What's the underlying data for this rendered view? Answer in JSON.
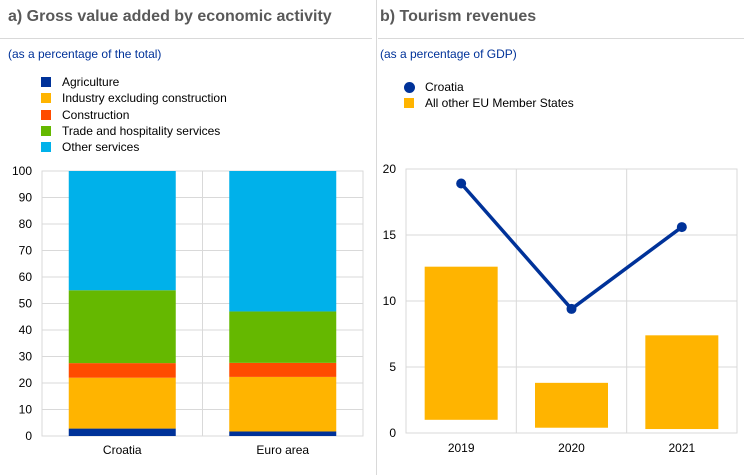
{
  "colors": {
    "agriculture": "#003299",
    "industry": "#FFB400",
    "construction": "#FF4B00",
    "trade": "#65B800",
    "other": "#00B1EA",
    "croatia_line": "#003299",
    "eu_bars": "#FFB400",
    "grid": "#d9d9d9",
    "title": "#595959",
    "subtitle": "#003299"
  },
  "panel_a": {
    "title": "a) Gross value added by economic activity",
    "subtitle": "(as a percentage of the total)",
    "legend": [
      {
        "label": "Agriculture",
        "color_key": "agriculture"
      },
      {
        "label": "Industry excluding construction",
        "color_key": "industry"
      },
      {
        "label": "Construction",
        "color_key": "construction"
      },
      {
        "label": "Trade and hospitality services",
        "color_key": "trade"
      },
      {
        "label": "Other services",
        "color_key": "other"
      }
    ]
  },
  "panel_b": {
    "title": "b) Tourism revenues",
    "subtitle": "(as a percentage of GDP)",
    "legend": [
      {
        "label": "Croatia",
        "marker": "dot",
        "color_key": "croatia_line"
      },
      {
        "label": "All other EU Member States",
        "marker": "square",
        "color_key": "eu_bars"
      }
    ]
  },
  "chart_data": [
    {
      "type": "bar",
      "stacked": true,
      "title": "a) Gross value added by economic activity",
      "subtitle": "(as a percentage of the total)",
      "categories": [
        "Croatia",
        "Euro area"
      ],
      "ylim": [
        0,
        100
      ],
      "yticks": [
        0,
        10,
        20,
        30,
        40,
        50,
        60,
        70,
        80,
        90,
        100
      ],
      "grid": true,
      "legend_position": "top-left",
      "series": [
        {
          "name": "Agriculture",
          "color_key": "agriculture",
          "values": [
            2.8,
            1.7
          ]
        },
        {
          "name": "Industry excluding construction",
          "color_key": "industry",
          "values": [
            19.2,
            20.6
          ]
        },
        {
          "name": "Construction",
          "color_key": "construction",
          "values": [
            5.5,
            5.3
          ]
        },
        {
          "name": "Trade and hospitality services",
          "color_key": "trade",
          "values": [
            27.5,
            19.4
          ]
        },
        {
          "name": "Other services",
          "color_key": "other",
          "values": [
            45.0,
            53.0
          ]
        }
      ]
    },
    {
      "type": "bar",
      "title": "b) Tourism revenues",
      "subtitle": "(as a percentage of GDP)",
      "categories": [
        "2019",
        "2020",
        "2021"
      ],
      "ylim": [
        0,
        20
      ],
      "yticks": [
        0,
        5,
        10,
        15,
        20
      ],
      "grid": true,
      "legend_position": "top-left",
      "series": [
        {
          "name": "All other EU Member States",
          "kind": "floating-bar",
          "color_key": "eu_bars",
          "low": [
            1.0,
            0.4,
            0.3
          ],
          "high": [
            12.6,
            3.8,
            7.4
          ]
        },
        {
          "name": "Croatia",
          "kind": "line",
          "color_key": "croatia_line",
          "values": [
            18.9,
            9.4,
            15.6
          ]
        }
      ]
    }
  ]
}
